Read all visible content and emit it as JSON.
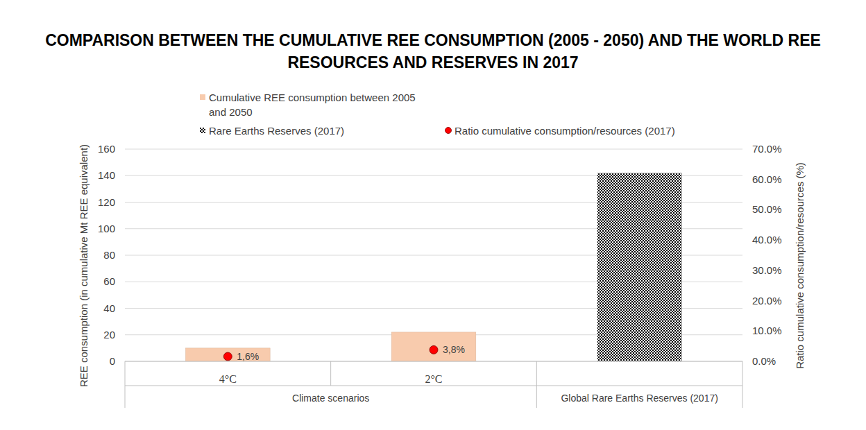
{
  "chart_data": {
    "type": "bar",
    "title": "COMPARISON BETWEEN THE CUMULATIVE REE CONSUMPTION (2005 - 2050) AND THE WORLD REE RESOURCES AND RESERVES IN 2017",
    "y_label": "REE consumption (in cumulative Mt REE equivalent)",
    "y2_label": "Ratio cumulative consumption/resources (%)",
    "categories": [
      "4°C",
      "2°C",
      null
    ],
    "category_groups": [
      "Climate scenarios",
      "Climate scenarios",
      "Global Rare Earths Reserves (2017)"
    ],
    "series": [
      {
        "name": "Cumulative REE consumption between 2005 and 2050",
        "type": "bar",
        "color": "#f8cbad",
        "values": [
          10,
          22,
          null
        ]
      },
      {
        "name": "Rare Earths Reserves (2017)",
        "type": "bar",
        "color": "#000000",
        "values": [
          null,
          null,
          142
        ]
      },
      {
        "name": "Ratio cumulative consumption/resources (2017)",
        "type": "scatter",
        "marker": "circle",
        "color": "#ff0000",
        "axis": "y2",
        "data_labels": true,
        "values": [
          1.6,
          3.8,
          null
        ],
        "value_labels": [
          "1,6%",
          "3,8%",
          null
        ]
      }
    ],
    "ylim": [
      0,
      160
    ],
    "yticks": [
      0,
      20,
      40,
      60,
      80,
      100,
      120,
      140,
      160
    ],
    "y2lim": [
      0,
      70
    ],
    "y2ticks": [
      {
        "value": 0,
        "label": "0.0%"
      },
      {
        "value": 10,
        "label": "10.0%"
      },
      {
        "value": 20,
        "label": "20.0%"
      },
      {
        "value": 30,
        "label": "30.0%"
      },
      {
        "value": 40,
        "label": "40.0%"
      },
      {
        "value": 50,
        "label": "50.0%"
      },
      {
        "value": 60,
        "label": "60.0%"
      },
      {
        "value": 70,
        "label": "70.0%"
      }
    ],
    "grid": true,
    "legend": "top"
  }
}
